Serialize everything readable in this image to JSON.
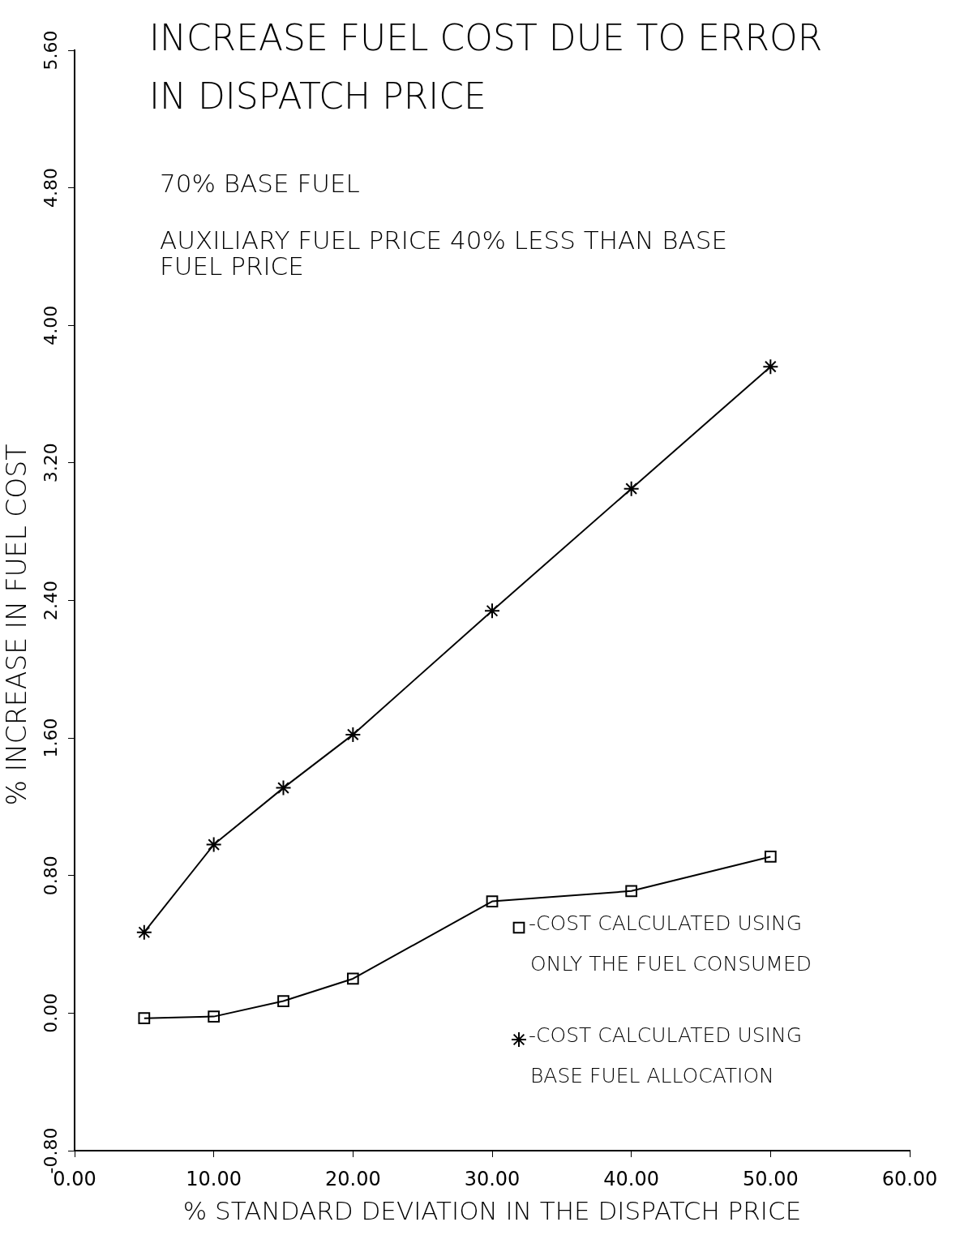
{
  "chart_data": {
    "type": "line",
    "title": "INCREASE FUEL COST DUE TO ERROR IN DISPATCH PRICE",
    "xlabel": "% STANDARD DEVIATION IN THE DISPATCH PRICE",
    "ylabel": "% INCREASE IN FUEL COST",
    "annotations": [
      "70% BASE FUEL",
      "AUXILIARY FUEL PRICE 40% LESS THAN BASE FUEL PRICE"
    ],
    "x": [
      5,
      10,
      15,
      20,
      30,
      40,
      50
    ],
    "series": [
      {
        "name": "-COST CALCULATED USING ONLY THE FUEL CONSUMED",
        "color": "#000000",
        "marker": "square",
        "values": [
          -0.03,
          -0.02,
          0.07,
          0.2,
          0.65,
          0.71,
          0.91
        ]
      },
      {
        "name": "-COST CALCULATED USING BASE FUEL ALLOCATION",
        "color": "#000000",
        "marker": "cross",
        "values": [
          0.47,
          0.98,
          1.31,
          1.62,
          2.34,
          3.05,
          3.76
        ]
      }
    ],
    "xlim": [
      0,
      60
    ],
    "ylim": [
      -0.8,
      5.6
    ],
    "xticks": [
      {
        "value": 0,
        "label": "0.00"
      },
      {
        "value": 10,
        "label": "10.00"
      },
      {
        "value": 20,
        "label": "20.00"
      },
      {
        "value": 30,
        "label": "30.00"
      },
      {
        "value": 40,
        "label": "40.00"
      },
      {
        "value": 50,
        "label": "50.00"
      },
      {
        "value": 60,
        "label": "60.00"
      }
    ],
    "yticks": [
      {
        "value": -0.8,
        "label": "-0.80"
      },
      {
        "value": 0,
        "label": "0.00"
      },
      {
        "value": 0.8,
        "label": "0.80"
      },
      {
        "value": 1.6,
        "label": "1.60"
      },
      {
        "value": 2.4,
        "label": "2.40"
      },
      {
        "value": 3.2,
        "label": "3.20"
      },
      {
        "value": 4,
        "label": "4.00"
      },
      {
        "value": 4.8,
        "label": "4.80"
      },
      {
        "value": 5.6,
        "label": "5.60"
      }
    ],
    "grid": false,
    "legend": "bottom right",
    "line_style": "solid"
  }
}
